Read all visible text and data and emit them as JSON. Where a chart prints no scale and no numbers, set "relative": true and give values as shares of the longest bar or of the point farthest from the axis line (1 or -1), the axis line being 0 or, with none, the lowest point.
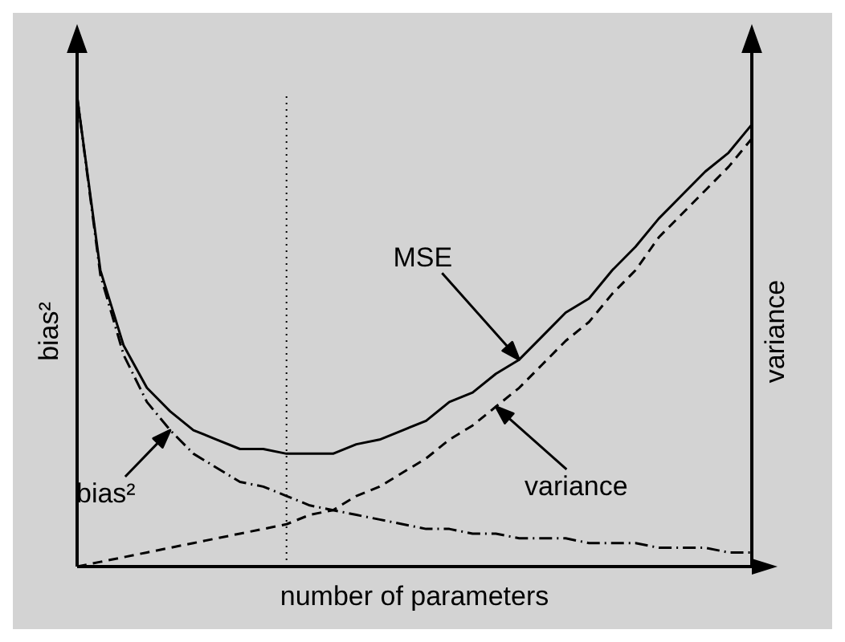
{
  "chart_data": {
    "type": "line",
    "relative": true,
    "xlabel": "number of parameters",
    "ylabel": "bias²",
    "y2label": "variance",
    "categories": [
      null,
      null,
      null,
      null,
      null,
      null,
      null,
      null,
      null,
      null,
      null,
      null,
      null,
      null,
      null,
      null,
      null,
      null,
      null,
      null,
      null,
      null,
      null,
      null,
      null,
      null,
      null,
      null,
      null,
      null
    ],
    "series": [
      {
        "color": "#000000",
        "line_style": "solid",
        "values": [
          1.0,
          0.63,
          0.47,
          0.38,
          0.33,
          0.29,
          0.27,
          0.25,
          0.25,
          0.24,
          0.24,
          0.24,
          0.26,
          0.27,
          0.29,
          0.31,
          0.35,
          0.37,
          0.41,
          0.44,
          0.49,
          0.54,
          0.57,
          0.63,
          0.68,
          0.74,
          0.79,
          0.84,
          0.88,
          0.94
        ]
      },
      {
        "color": "#000000",
        "line_style": "dashdot",
        "values": [
          1.0,
          0.62,
          0.45,
          0.35,
          0.29,
          0.24,
          0.21,
          0.18,
          0.17,
          0.15,
          0.13,
          0.12,
          0.11,
          0.1,
          0.09,
          0.08,
          0.08,
          0.07,
          0.07,
          0.06,
          0.06,
          0.06,
          0.05,
          0.05,
          0.05,
          0.04,
          0.04,
          0.04,
          0.03,
          0.03
        ]
      },
      {
        "color": "#000000",
        "line_style": "dashed",
        "values": [
          0.0,
          0.01,
          0.02,
          0.03,
          0.04,
          0.05,
          0.06,
          0.07,
          0.08,
          0.09,
          0.11,
          0.12,
          0.15,
          0.17,
          0.2,
          0.23,
          0.27,
          0.3,
          0.34,
          0.38,
          0.43,
          0.48,
          0.52,
          0.58,
          0.63,
          0.7,
          0.75,
          0.8,
          0.85,
          0.91
        ]
      }
    ],
    "annotations": [
      "MSE",
      "bias²",
      "variance"
    ]
  }
}
